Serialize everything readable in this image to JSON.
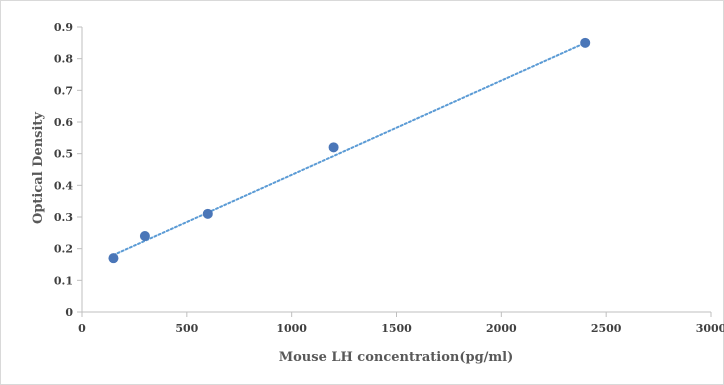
{
  "chart_data": {
    "type": "scatter",
    "title": "",
    "xlabel": "Mouse LH concentration(pg/ml)",
    "ylabel": "Optical Density",
    "xlim": [
      0,
      3000
    ],
    "ylim": [
      0,
      0.9
    ],
    "x_ticks": [
      "0",
      "500",
      "1000",
      "1500",
      "2000",
      "2500",
      "3000"
    ],
    "y_ticks": [
      "0",
      "0.1",
      "0.2",
      "0.3",
      "0.4",
      "0.5",
      "0.6",
      "0.7",
      "0.8",
      "0.9"
    ],
    "grid": false,
    "legend": "none",
    "series": [
      {
        "x": [
          150,
          300,
          600,
          1200,
          2400
        ],
        "y": [
          0.17,
          0.24,
          0.31,
          0.52,
          0.85
        ],
        "marker_color": "#4a76b8"
      }
    ],
    "trendline": {
      "type": "linear",
      "style": "dotted",
      "color": "#5b9bd5",
      "from": [
        150,
        0.18
      ],
      "to": [
        2400,
        0.85
      ]
    }
  }
}
